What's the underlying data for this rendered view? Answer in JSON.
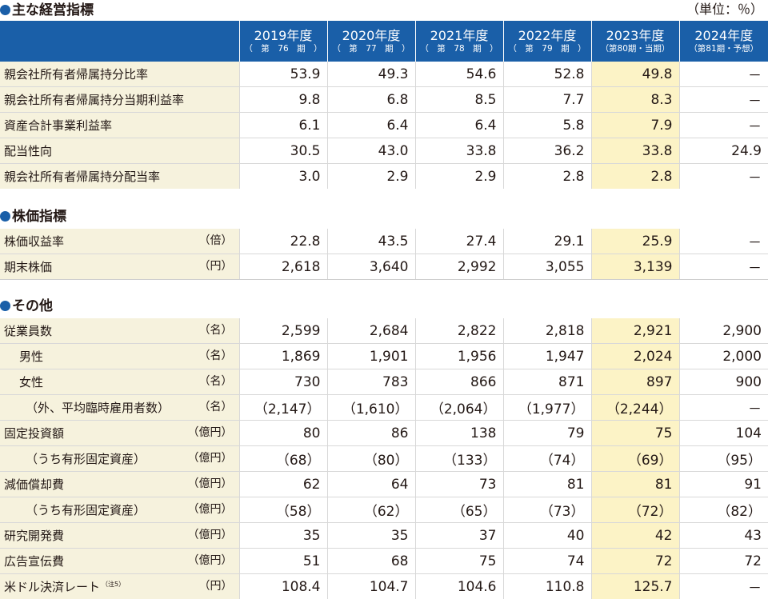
{
  "unit_note": "（単位：％）",
  "years": [
    {
      "year": "2019年度",
      "period": "（　第　76　期　）"
    },
    {
      "year": "2020年度",
      "period": "（　第　77　期　）"
    },
    {
      "year": "2021年度",
      "period": "（　第　78　期　）"
    },
    {
      "year": "2022年度",
      "period": "（　第　79　期　）"
    },
    {
      "year": "2023年度",
      "period": "（第80期・当期）"
    },
    {
      "year": "2024年度",
      "period": "（第81期・予想）"
    }
  ],
  "section1": {
    "title": "主な経営指標",
    "rows": [
      {
        "label": "親会社所有者帰属持分比率",
        "unit": "",
        "values": [
          "53.9",
          "49.3",
          "54.6",
          "52.8",
          "49.8",
          "－"
        ]
      },
      {
        "label": "親会社所有者帰属持分当期利益率",
        "unit": "",
        "values": [
          "9.8",
          "6.8",
          "8.5",
          "7.7",
          "8.3",
          "－"
        ]
      },
      {
        "label": "資産合計事業利益率",
        "unit": "",
        "values": [
          "6.1",
          "6.4",
          "6.4",
          "5.8",
          "7.9",
          "－"
        ]
      },
      {
        "label": "配当性向",
        "unit": "",
        "values": [
          "30.5",
          "43.0",
          "33.8",
          "36.2",
          "33.8",
          "24.9"
        ]
      },
      {
        "label": "親会社所有者帰属持分配当率",
        "unit": "",
        "values": [
          "3.0",
          "2.9",
          "2.9",
          "2.8",
          "2.8",
          "－"
        ]
      }
    ]
  },
  "section2": {
    "title": "株価指標",
    "rows": [
      {
        "label": "株価収益率",
        "unit": "（倍）",
        "values": [
          "22.8",
          "43.5",
          "27.4",
          "29.1",
          "25.9",
          "－"
        ]
      },
      {
        "label": "期末株価",
        "unit": "（円）",
        "values": [
          "2,618",
          "3,640",
          "2,992",
          "3,055",
          "3,139",
          "－"
        ]
      }
    ]
  },
  "section3": {
    "title": "その他",
    "rows": [
      {
        "label": "従業員数",
        "unit": "（名）",
        "indent": 0,
        "values": [
          "2,599",
          "2,684",
          "2,822",
          "2,818",
          "2,921",
          "2,900"
        ]
      },
      {
        "label": "男性",
        "unit": "（名）",
        "indent": 1,
        "values": [
          "1,869",
          "1,901",
          "1,956",
          "1,947",
          "2,024",
          "2,000"
        ]
      },
      {
        "label": "女性",
        "unit": "（名）",
        "indent": 1,
        "values": [
          "730",
          "783",
          "866",
          "871",
          "897",
          "900"
        ]
      },
      {
        "label": "（外、平均臨時雇用者数）",
        "unit": "（名）",
        "indent": 2,
        "values": [
          "（2,147）",
          "（1,610）",
          "（2,064）",
          "（1,977）",
          "（2,244）",
          "－"
        ]
      },
      {
        "label": "固定投資額",
        "unit": "（億円）",
        "indent": 0,
        "values": [
          "80",
          "86",
          "138",
          "79",
          "75",
          "104"
        ]
      },
      {
        "label": "（うち有形固定資産）",
        "unit": "（億円）",
        "indent": 2,
        "values": [
          "（68）",
          "（80）",
          "（133）",
          "（74）",
          "（69）",
          "（95）"
        ]
      },
      {
        "label": "減価償却費",
        "unit": "（億円）",
        "indent": 0,
        "values": [
          "62",
          "64",
          "73",
          "81",
          "81",
          "91"
        ]
      },
      {
        "label": "（うち有形固定資産）",
        "unit": "（億円）",
        "indent": 2,
        "values": [
          "（58）",
          "（62）",
          "（65）",
          "（73）",
          "（72）",
          "（82）"
        ]
      },
      {
        "label": "研究開発費",
        "unit": "（億円）",
        "indent": 0,
        "values": [
          "35",
          "35",
          "37",
          "40",
          "42",
          "43"
        ]
      },
      {
        "label": "広告宣伝費",
        "unit": "（億円）",
        "indent": 0,
        "values": [
          "51",
          "68",
          "75",
          "74",
          "72",
          "72"
        ]
      },
      {
        "label": "米ドル決済レート",
        "note": "（注5）",
        "unit": "（円）",
        "indent": 0,
        "values": [
          "108.4",
          "104.7",
          "104.6",
          "110.8",
          "125.7",
          "－"
        ]
      }
    ]
  },
  "colors": {
    "header_blue": "#1a5fa8",
    "label_bg": "#f6f2dd",
    "highlight": "#fcf3c6"
  }
}
